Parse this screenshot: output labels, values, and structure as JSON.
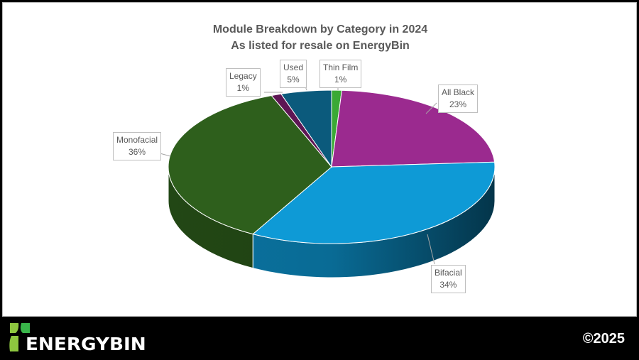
{
  "chart_data": {
    "type": "pie",
    "style": "3d",
    "title": "Module Breakdown by Category in 2024",
    "subtitle": "As listed for resale on EnergyBin",
    "slices": [
      {
        "label": "Thin Film",
        "value": 1,
        "display": "1%",
        "color": "#3aa935"
      },
      {
        "label": "All Black",
        "value": 23,
        "display": "23%",
        "color": "#9b2a8f"
      },
      {
        "label": "Bifacial",
        "value": 34,
        "display": "34%",
        "color": "#0e9ad6"
      },
      {
        "label": "Monofacial",
        "value": 36,
        "display": "36%",
        "color": "#2e5f1c"
      },
      {
        "label": "Legacy",
        "value": 1,
        "display": "1%",
        "color": "#5e1654"
      },
      {
        "label": "Used",
        "value": 5,
        "display": "5%",
        "color": "#0b5a7c"
      }
    ],
    "legend": "none"
  },
  "footer": {
    "brand": "ENERGYBIN",
    "copyright": "©2025"
  },
  "colors": {
    "logo_light": "#8dc63f",
    "logo_dark": "#39b54a"
  }
}
